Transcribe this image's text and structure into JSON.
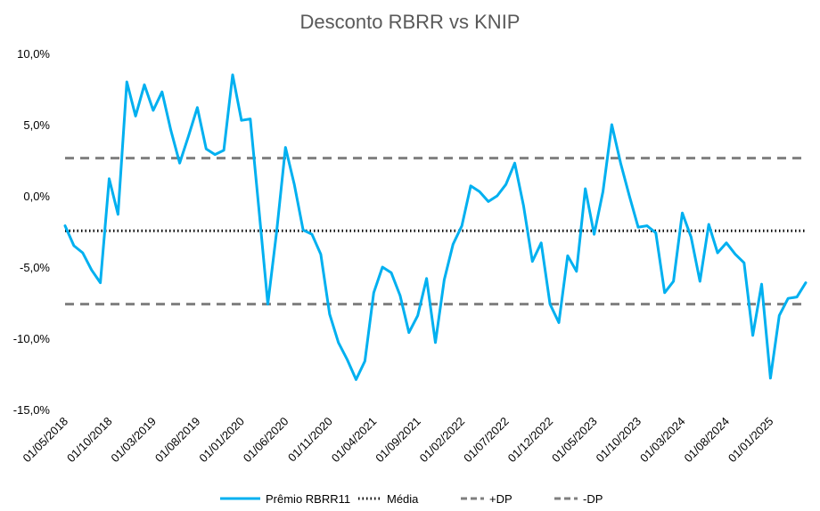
{
  "chart_data": {
    "type": "line",
    "title": "Desconto RBRR vs KNIP",
    "xlabel": "",
    "ylabel": "",
    "ylim": [
      -15,
      10
    ],
    "y_ticks": [
      "10,0%",
      "5,0%",
      "0,0%",
      "-5,0%",
      "-10,0%",
      "-15,0%"
    ],
    "y_tick_values": [
      10,
      5,
      0,
      -5,
      -10,
      -15
    ],
    "x_tick_labels": [
      "01/05/2018",
      "01/10/2018",
      "01/03/2019",
      "01/08/2019",
      "01/01/2020",
      "01/06/2020",
      "01/11/2020",
      "01/04/2021",
      "01/09/2021",
      "01/02/2022",
      "01/07/2022",
      "01/12/2022",
      "01/05/2023",
      "01/10/2023",
      "01/03/2024",
      "01/08/2024",
      "01/01/2025"
    ],
    "x_start": "2018-05",
    "series": [
      {
        "name": "Prêmio RBRR11",
        "style": "solid",
        "color": "#00B0F0",
        "x": [
          "2018-05",
          "2018-06",
          "2018-07",
          "2018-08",
          "2018-09",
          "2018-10",
          "2018-11",
          "2018-12",
          "2019-01",
          "2019-02",
          "2019-03",
          "2019-04",
          "2019-05",
          "2019-06",
          "2019-07",
          "2019-08",
          "2019-09",
          "2019-10",
          "2019-11",
          "2019-12",
          "2020-01",
          "2020-02",
          "2020-03",
          "2020-04",
          "2020-05",
          "2020-06",
          "2020-07",
          "2020-08",
          "2020-09",
          "2020-10",
          "2020-11",
          "2020-12",
          "2021-01",
          "2021-02",
          "2021-03",
          "2021-04",
          "2021-05",
          "2021-06",
          "2021-07",
          "2021-08",
          "2021-09",
          "2021-10",
          "2021-11",
          "2021-12",
          "2022-01",
          "2022-02",
          "2022-03",
          "2022-04",
          "2022-05",
          "2022-06",
          "2022-07",
          "2022-08",
          "2022-09",
          "2022-10",
          "2022-11",
          "2022-12",
          "2023-01",
          "2023-02",
          "2023-03",
          "2023-04",
          "2023-05",
          "2023-06",
          "2023-07",
          "2023-08",
          "2023-09",
          "2023-10",
          "2023-11",
          "2023-12",
          "2024-01",
          "2024-02",
          "2024-03",
          "2024-04",
          "2024-05",
          "2024-06",
          "2024-07",
          "2024-08",
          "2024-09",
          "2024-10",
          "2024-11",
          "2024-12",
          "2025-01",
          "2025-02",
          "2025-03",
          "2025-04",
          "2025-05"
        ],
        "values": [
          -2.1,
          -3.5,
          -4.0,
          -5.2,
          -6.1,
          1.2,
          -1.3,
          8.0,
          5.6,
          7.8,
          6.0,
          7.3,
          4.6,
          2.3,
          4.2,
          6.2,
          3.3,
          2.9,
          3.2,
          8.5,
          5.3,
          5.4,
          -1.0,
          -7.6,
          -2.5,
          3.4,
          0.8,
          -2.4,
          -2.7,
          -4.1,
          -8.3,
          -10.3,
          -11.5,
          -12.9,
          -11.6,
          -6.8,
          -5.0,
          -5.4,
          -7.0,
          -9.6,
          -8.4,
          -5.8,
          -10.3,
          -5.9,
          -3.4,
          -2.1,
          0.7,
          0.3,
          -0.4,
          0.0,
          0.8,
          2.3,
          -0.7,
          -4.6,
          -3.3,
          -7.6,
          -8.9,
          -4.2,
          -5.3,
          0.5,
          -2.7,
          0.3,
          5.0,
          2.3,
          0.0,
          -2.2,
          -2.1,
          -2.6,
          -6.8,
          -6.0,
          -1.2,
          -2.9,
          -6.0,
          -2.0,
          -4.0,
          -3.3,
          -4.1,
          -4.7,
          -9.8,
          -6.2,
          -12.8,
          -8.4,
          -7.2,
          -7.1,
          -6.1
        ]
      },
      {
        "name": "Média",
        "style": "dotted",
        "color": "#000000",
        "value": -2.45
      },
      {
        "name": "+DP",
        "style": "dashed",
        "color": "#7F7F7F",
        "value": 2.65
      },
      {
        "name": "-DP",
        "style": "dashed",
        "color": "#7F7F7F",
        "value": -7.6
      }
    ],
    "legend": "bottom",
    "grid": false
  }
}
